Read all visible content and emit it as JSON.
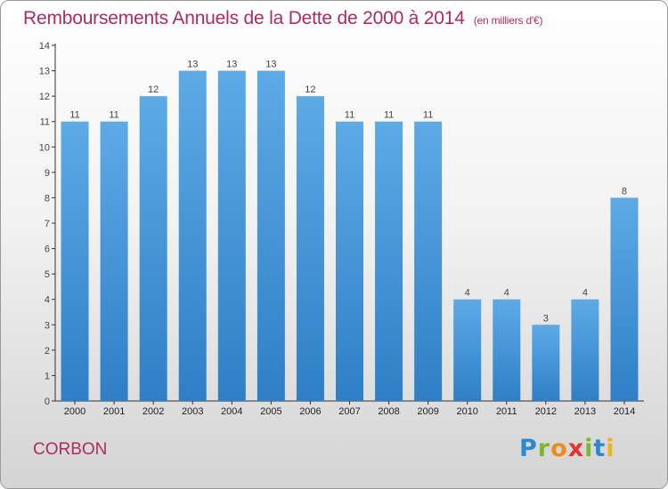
{
  "title": "Remboursements Annuels de la Dette de 2000 à 2014",
  "unit_note": "(en milliers d'€)",
  "commune": "CORBON",
  "logo": {
    "letters": [
      "P",
      "r",
      "o",
      "x",
      "i",
      "t",
      "i"
    ],
    "colors": [
      "#2a8ad0",
      "#7db72f",
      "#f08a1c",
      "#e3342f",
      "#7db72f",
      "#2a8ad0",
      "#f2b41c"
    ]
  },
  "colors": {
    "title": "#b02a62",
    "bar_light": "#5daae6",
    "bar_dark": "#2f7fc7",
    "axis": "#333333"
  },
  "chart_data": {
    "type": "bar",
    "title": "Remboursements Annuels de la Dette de 2000 à 2014",
    "xlabel": "",
    "ylabel": "",
    "categories": [
      "2000",
      "2001",
      "2002",
      "2003",
      "2004",
      "2005",
      "2006",
      "2007",
      "2008",
      "2009",
      "2010",
      "2011",
      "2012",
      "2013",
      "2014"
    ],
    "values": [
      11,
      11,
      12,
      13,
      13,
      13,
      12,
      11,
      11,
      11,
      4,
      4,
      3,
      4,
      8
    ],
    "labels": [
      "11",
      "11",
      "12",
      "13",
      "13",
      "13",
      "12",
      "11",
      "11",
      "11",
      "4",
      "4",
      "3",
      "4",
      "8"
    ],
    "ylim": [
      0,
      14
    ],
    "yticks": [
      "0",
      "1",
      "2",
      "3",
      "4",
      "5",
      "6",
      "7",
      "8",
      "9",
      "10",
      "11",
      "12",
      "13",
      "14"
    ],
    "grid": false
  }
}
